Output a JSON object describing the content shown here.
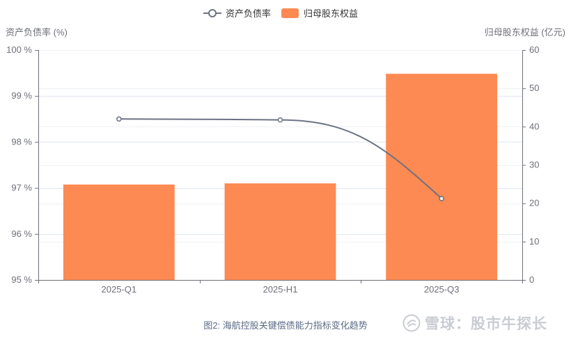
{
  "chart_data": {
    "type": "bar",
    "categories": [
      "2025-Q1",
      "2025-H1",
      "2025-Q3"
    ],
    "series": [
      {
        "name": "归母股东权益",
        "kind": "bar",
        "axis": "right",
        "color": "#fc8a52",
        "values": [
          24.9,
          25.2,
          53.8
        ]
      },
      {
        "name": "资产负债率",
        "kind": "line",
        "axis": "left",
        "color": "#6b7383",
        "values": [
          98.5,
          98.48,
          96.77
        ]
      }
    ],
    "y_left": {
      "label": "资产负债率 (%)",
      "ylim": [
        95,
        100
      ],
      "ticks": [
        95,
        96,
        97,
        98,
        99,
        100
      ],
      "tick_labels": [
        "95 %",
        "96 %",
        "97 %",
        "98 %",
        "99 %",
        "100 %"
      ]
    },
    "y_right": {
      "label": "归母股东权益 (亿元)",
      "ylim": [
        0,
        60
      ],
      "ticks": [
        0,
        10,
        20,
        30,
        40,
        50,
        60
      ],
      "tick_labels": [
        "0",
        "10",
        "20",
        "30",
        "40",
        "50",
        "60"
      ]
    },
    "grid": true,
    "legend_position": "top-center"
  },
  "caption": "图2: 海航控股关键偿债能力指标变化趋势",
  "watermark": {
    "text": "雪球：股市牛探长"
  }
}
